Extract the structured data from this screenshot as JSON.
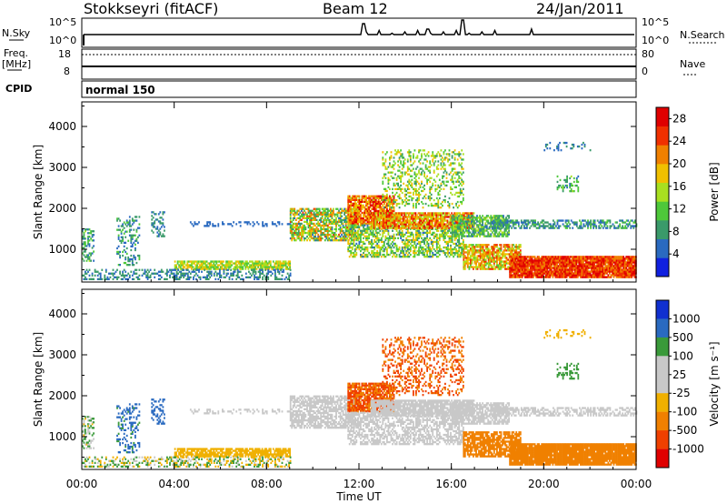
{
  "header": {
    "station": "Stokkseyri (fitACF)",
    "beam": "Beam 12",
    "date": "24/Jan/2011"
  },
  "noise_panel": {
    "left_label": "N.Sky",
    "right_label": "N.Search",
    "left_ticks": [
      "10^5",
      "10^0"
    ],
    "right_ticks": [
      "10^5",
      "10^0"
    ]
  },
  "freq_panel": {
    "left_label_line1": "Freq.",
    "left_label_line2": "[MHz]",
    "right_label": "Nave",
    "left_ticks": [
      "18",
      "8"
    ],
    "right_ticks": [
      "80",
      "0"
    ]
  },
  "cpid": {
    "label": "CPID",
    "mode": "normal 150"
  },
  "colors": {
    "power": [
      "#1020e0",
      "#2a6ac0",
      "#3a9a6a",
      "#4ec83a",
      "#a8e020",
      "#f0c000",
      "#f08000",
      "#f03000",
      "#e00000"
    ],
    "velocity": [
      "#e00000",
      "#f04000",
      "#f08000",
      "#f0b000",
      "#c8c8c8",
      "#c8c8c8",
      "#3a9a3a",
      "#2a6ac0",
      "#1030d0"
    ]
  },
  "chart_data": [
    {
      "type": "heatmap",
      "panel": "power",
      "xlabel": "Time UT",
      "ylabel": "Slant Range [km]",
      "xlim": [
        0,
        24
      ],
      "ylim": [
        200,
        4600
      ],
      "x_ticks": [
        "00:00",
        "04:00",
        "08:00",
        "12:00",
        "16:00",
        "20:00",
        "00:00"
      ],
      "y_ticks": [
        "1000",
        "2000",
        "3000",
        "4000"
      ],
      "colorbar": {
        "label": "Power [dB]",
        "ticks": [
          "4",
          "8",
          "12",
          "16",
          "20",
          "24",
          "28"
        ],
        "range": [
          0,
          30
        ]
      }
    },
    {
      "type": "heatmap",
      "panel": "velocity",
      "xlabel": "Time UT",
      "ylabel": "Slant Range [km]",
      "xlim": [
        0,
        24
      ],
      "ylim": [
        200,
        4600
      ],
      "x_ticks": [
        "00:00",
        "04:00",
        "08:00",
        "12:00",
        "16:00",
        "20:00",
        "00:00"
      ],
      "y_ticks": [
        "1000",
        "2000",
        "3000",
        "4000"
      ],
      "colorbar": {
        "label": "Velocity [m s⁻¹]",
        "ticks": [
          "1000",
          "500",
          "100",
          "25",
          "-25",
          "-100",
          "-500",
          "-1000"
        ]
      }
    }
  ]
}
